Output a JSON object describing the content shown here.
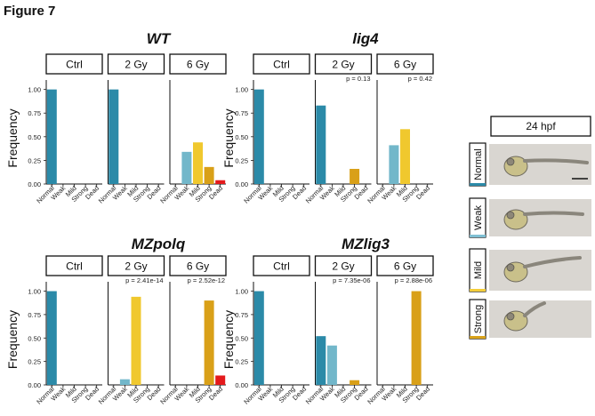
{
  "figure_title": "Figure 7",
  "legend": {
    "header": "24 hpf",
    "rows": [
      {
        "label": "Normal",
        "color": "#2b8aa8"
      },
      {
        "label": "Weak",
        "color": "#7fbfd3"
      },
      {
        "label": "Mild",
        "color": "#f3cd3a"
      },
      {
        "label": "Strong",
        "color": "#d9a21a"
      }
    ]
  },
  "chart_data": [
    {
      "type": "bar",
      "title": "WT",
      "ylabel": "Frequency",
      "ylim": [
        0,
        1.1
      ],
      "yticks": [
        "0.00",
        "0.25",
        "0.50",
        "0.75",
        "1.00"
      ],
      "categories": [
        "Normal",
        "Weak",
        "Mild",
        "Strong",
        "Dead"
      ],
      "facets": [
        {
          "label": "Ctrl",
          "p": "",
          "values": [
            1.0,
            0,
            0,
            0,
            0
          ]
        },
        {
          "label": "2 Gy",
          "p": "",
          "values": [
            1.0,
            0,
            0,
            0,
            0
          ]
        },
        {
          "label": "6 Gy",
          "p": "",
          "values": [
            0,
            0.34,
            0.44,
            0.18,
            0.04
          ]
        }
      ]
    },
    {
      "type": "bar",
      "title": "lig4",
      "ylabel": "Frequency",
      "ylim": [
        0,
        1.1
      ],
      "yticks": [
        "0.00",
        "0.25",
        "0.50",
        "0.75",
        "1.00"
      ],
      "categories": [
        "Normal",
        "Weak",
        "Mild",
        "Strong",
        "Dead"
      ],
      "facets": [
        {
          "label": "Ctrl",
          "p": "",
          "values": [
            1.0,
            0,
            0,
            0,
            0
          ]
        },
        {
          "label": "2 Gy",
          "p": "p = 0.13",
          "values": [
            0.83,
            0,
            0,
            0.16,
            0
          ]
        },
        {
          "label": "6 Gy",
          "p": "p = 0.42",
          "values": [
            0,
            0.41,
            0.58,
            0,
            0
          ]
        }
      ]
    },
    {
      "type": "bar",
      "title": "MZpolq",
      "ylabel": "Frequency",
      "ylim": [
        0,
        1.1
      ],
      "yticks": [
        "0.00",
        "0.25",
        "0.50",
        "0.75",
        "1.00"
      ],
      "categories": [
        "Normal",
        "Weak",
        "Mild",
        "Strong",
        "Dead"
      ],
      "facets": [
        {
          "label": "Ctrl",
          "p": "",
          "values": [
            1.0,
            0,
            0,
            0,
            0
          ]
        },
        {
          "label": "2 Gy",
          "p": "p = 2.41e-14",
          "values": [
            0,
            0.06,
            0.94,
            0,
            0
          ]
        },
        {
          "label": "6 Gy",
          "p": "p = 2.52e-12",
          "values": [
            0,
            0,
            0,
            0.9,
            0.1
          ]
        }
      ]
    },
    {
      "type": "bar",
      "title": "MZlig3",
      "ylabel": "Frequency",
      "ylim": [
        0,
        1.1
      ],
      "yticks": [
        "0.00",
        "0.25",
        "0.50",
        "0.75",
        "1.00"
      ],
      "categories": [
        "Normal",
        "Weak",
        "Mild",
        "Strong",
        "Dead"
      ],
      "facets": [
        {
          "label": "Ctrl",
          "p": "",
          "values": [
            1.0,
            0,
            0,
            0,
            0
          ]
        },
        {
          "label": "2 Gy",
          "p": "p = 7.35e-06",
          "values": [
            0.52,
            0.42,
            0,
            0.05,
            0
          ]
        },
        {
          "label": "6 Gy",
          "p": "p = 2.88e-06",
          "values": [
            0,
            0,
            0,
            1.0,
            0
          ]
        }
      ]
    }
  ],
  "colors": {
    "Normal": "#2b8aa8",
    "Weak": "#72b7ca",
    "Mild": "#f0c82e",
    "Strong": "#d9a018",
    "Dead": "#e41a1c"
  }
}
